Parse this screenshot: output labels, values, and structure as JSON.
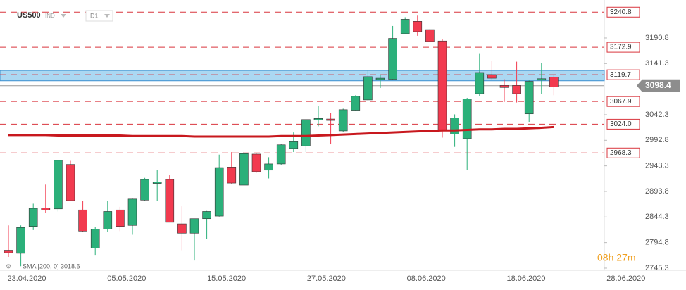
{
  "chart_data": {
    "type": "candlestick",
    "title": "US500",
    "subtitle": "IND",
    "timeframe": "D1",
    "countdown": "08h 27m",
    "x_labels": [
      "23.04.2020",
      "05.05.2020",
      "15.05.2020",
      "27.05.2020",
      "08.06.2020",
      "18.06.2020",
      "28.06.2020"
    ],
    "open": [
      2780,
      2774,
      2826,
      2862,
      2860,
      2946,
      2858,
      2784,
      2821,
      2858,
      2828,
      2877,
      2911,
      2917,
      2831,
      2813,
      2841,
      2846,
      2941,
      2906,
      2966,
      2935,
      2947,
      2977,
      2982,
      3032,
      3034,
      3011,
      3051,
      3071,
      3112,
      3111,
      3199,
      3223,
      3207,
      3185,
      3005,
      2996,
      3083,
      3120,
      3099,
      3099,
      3044,
      3110,
      3115
    ],
    "high": [
      2828,
      2828,
      2870,
      2907,
      2954,
      2953,
      2876,
      2825,
      2876,
      2864,
      2880,
      2920,
      2935,
      2925,
      2865,
      2841,
      2856,
      2965,
      2970,
      2970,
      2967,
      2960,
      2985,
      3008,
      3033,
      3060,
      3046,
      3054,
      3080,
      3128,
      3120,
      3214,
      3231,
      3234,
      3208,
      3188,
      3043,
      3075,
      3160,
      3147,
      3111,
      3145,
      3110,
      3142,
      3120
    ],
    "low": [
      2767,
      2749,
      2819,
      2852,
      2855,
      2875,
      2815,
      2771,
      2815,
      2817,
      2810,
      2875,
      2875,
      2834,
      2780,
      2760,
      2802,
      2845,
      2908,
      2906,
      2930,
      2919,
      2945,
      2970,
      2970,
      3020,
      2985,
      3009,
      3050,
      3070,
      3094,
      3109,
      3198,
      3195,
      3185,
      2998,
      2980,
      2936,
      3079,
      3109,
      3067,
      3066,
      3028,
      3082,
      3080
    ],
    "close": [
      2775,
      2824,
      2861,
      2858,
      2954,
      2876,
      2817,
      2821,
      2855,
      2826,
      2879,
      2917,
      2912,
      2834,
      2813,
      2841,
      2855,
      2940,
      2910,
      2967,
      2932,
      2947,
      2984,
      2990,
      3033,
      3035,
      3033,
      3052,
      3078,
      3116,
      3113,
      3190,
      3227,
      3203,
      3184,
      3011,
      3036,
      3073,
      3124,
      3113,
      3095,
      3083,
      3107,
      3112,
      3096
    ],
    "up_color": "#2bb07a",
    "down_color": "#f23a4f",
    "sma": {
      "label": "SMA [200, 0] 3018.6",
      "color": "#c8181e",
      "values": [
        3003,
        3003,
        3003,
        3003,
        3002,
        3002,
        3002,
        3002,
        3002,
        3002,
        3001,
        3001,
        3001,
        3001,
        3001,
        3000,
        3000,
        3000,
        3000,
        3000,
        3000,
        3000,
        3001,
        3001,
        3001,
        3002,
        3003,
        3004,
        3005,
        3006,
        3007,
        3008,
        3009,
        3010,
        3011,
        3012,
        3012,
        3013,
        3014,
        3014,
        3015,
        3015,
        3016,
        3017,
        3018.6
      ]
    },
    "levels": [
      3240.8,
      3172.9,
      3119.7,
      3067.9,
      {
        "value": 3024,
        "label": "3024.0"
      },
      2968.3
    ],
    "level_color": "#d9363e",
    "zone": [
      3108,
      3128
    ],
    "zone_color": "#8fcbee",
    "current_price": 3098.4,
    "ylim": [
      2722.1,
      3250.7
    ],
    "yticks": [
      2745.3,
      2794.8,
      2844.3,
      2893.8,
      2943.3,
      2992.8,
      3042.3,
      3141.3,
      3190.8
    ]
  }
}
